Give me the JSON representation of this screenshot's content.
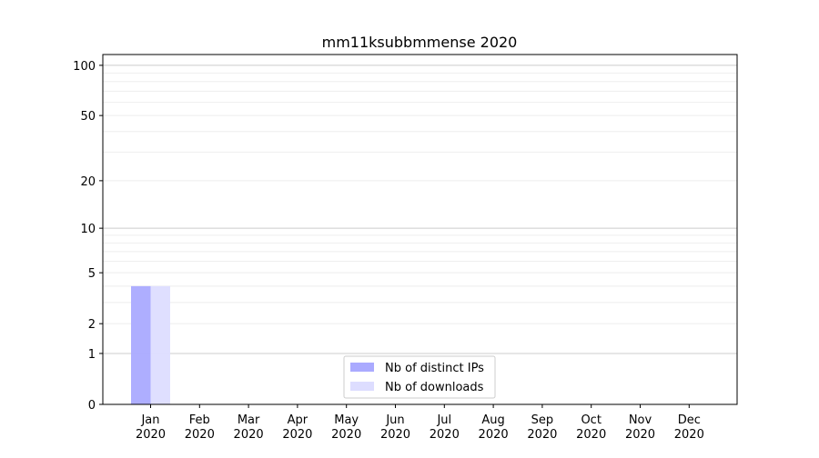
{
  "chart_data": {
    "type": "bar",
    "title": "mm11ksubbmmense 2020",
    "xlabel": "",
    "ylabel": "",
    "yscale": "log(1+y)",
    "ylim": [
      0,
      116
    ],
    "yticks": [
      0,
      1,
      2,
      5,
      10,
      20,
      50,
      100
    ],
    "ytick_labels": [
      "0",
      "1",
      "2",
      "5",
      "10",
      "20",
      "50",
      "100"
    ],
    "grid": true,
    "legend_position": "bottom-center",
    "categories": [
      "Jan\n2020",
      "Feb\n2020",
      "Mar\n2020",
      "Apr\n2020",
      "May\n2020",
      "Jun\n2020",
      "Jul\n2020",
      "Aug\n2020",
      "Sep\n2020",
      "Oct\n2020",
      "Nov\n2020",
      "Dec\n2020"
    ],
    "series": [
      {
        "name": "Nb of distinct IPs",
        "color": "#aaaaff",
        "values": [
          4,
          0,
          0,
          0,
          0,
          0,
          0,
          0,
          0,
          0,
          0,
          0
        ]
      },
      {
        "name": "Nb of downloads",
        "color": "#ddddff",
        "values": [
          4,
          0,
          0,
          0,
          0,
          0,
          0,
          0,
          0,
          0,
          0,
          0
        ]
      }
    ]
  }
}
